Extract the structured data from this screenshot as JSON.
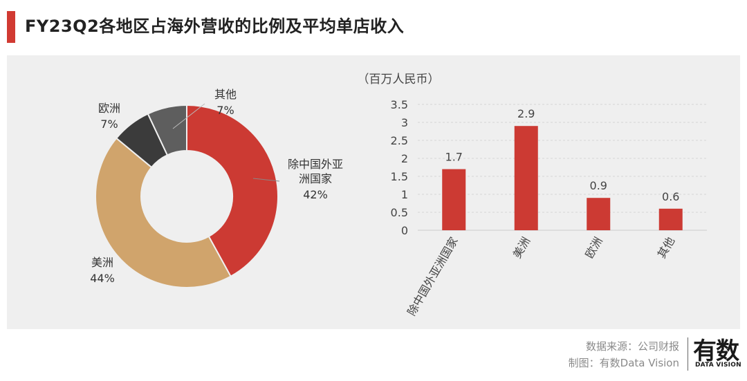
{
  "header": {
    "title": "FY23Q2各地区占海外营收的比例及平均单店收入"
  },
  "footer": {
    "source": "数据来源：公司财报",
    "credit": "制图：有数Data Vision"
  },
  "logo": {
    "main": "有数",
    "sub": "DATA VISION"
  },
  "colors": {
    "accent_red": "#d13a32",
    "donut_red": "#cc3a33",
    "donut_tan": "#d0a46c",
    "donut_dark": "#3b3b3b",
    "donut_gray": "#5e5e5e",
    "bar_red": "#cc3a33"
  },
  "chart_data": [
    {
      "type": "pie",
      "title": "",
      "donut": true,
      "slices": [
        {
          "label": "除中国外亚洲国家",
          "label_lines": [
            "除中国外亚",
            "洲国家"
          ],
          "value": 42,
          "pct_text": "42%"
        },
        {
          "label": "美洲",
          "label_lines": [
            "美洲"
          ],
          "value": 44,
          "pct_text": "44%"
        },
        {
          "label": "欧洲",
          "label_lines": [
            "欧洲"
          ],
          "value": 7,
          "pct_text": "7%"
        },
        {
          "label": "其他",
          "label_lines": [
            "其他"
          ],
          "value": 7,
          "pct_text": "7%"
        }
      ]
    },
    {
      "type": "bar",
      "unit_label": "（百万人民币）",
      "categories": [
        "除中国外亚洲国家",
        "美洲",
        "欧洲",
        "其他"
      ],
      "values": [
        1.7,
        2.9,
        0.9,
        0.6
      ],
      "value_labels": [
        "1.7",
        "2.9",
        "0.9",
        "0.6"
      ],
      "yticks": [
        "0",
        "0.5",
        "1",
        "1.5",
        "2",
        "2.5",
        "3",
        "3.5"
      ],
      "ylim": [
        0,
        3.5
      ],
      "grid": true
    }
  ]
}
